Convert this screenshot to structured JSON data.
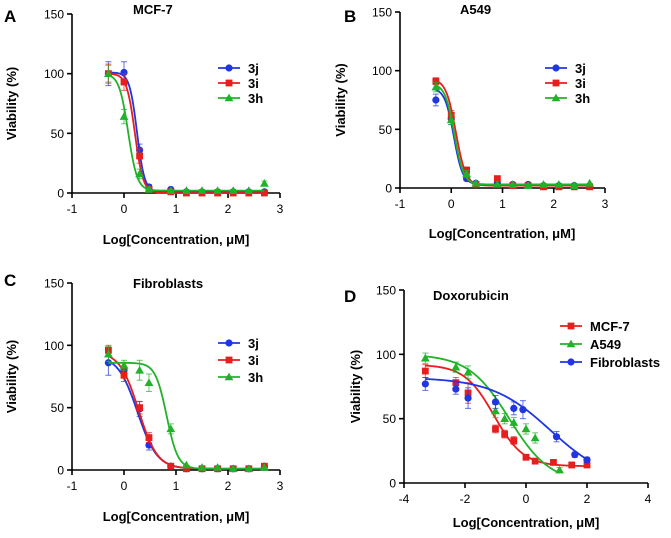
{
  "chart_data": [
    {
      "panel": "A",
      "type": "scatter",
      "title": "MCF-7",
      "xlabel": "Log[Concentration, μM]",
      "ylabel": "Viability (%)",
      "xlim": [
        -1,
        3
      ],
      "ylim": [
        0,
        150
      ],
      "xticks": [
        -1,
        0,
        1,
        2,
        3
      ],
      "yticks": [
        0,
        50,
        100,
        150
      ],
      "xtick_labels": [
        "-1",
        "0",
        "1",
        "2",
        "3"
      ],
      "ytick_labels": [
        "0",
        "50",
        "100",
        "150"
      ],
      "legend_position": "top-right",
      "series": [
        {
          "name": "3j",
          "color": "#1f36e0",
          "marker": "circle",
          "x": [
            -0.3,
            0.0,
            0.3,
            0.48,
            0.9,
            1.2,
            1.5,
            1.8,
            2.1,
            2.4,
            2.7
          ],
          "y": [
            100,
            101,
            36,
            5,
            3,
            1,
            1,
            1,
            1,
            1,
            1
          ],
          "err": [
            10,
            9,
            5,
            2,
            1,
            1,
            1,
            1,
            1,
            1,
            1
          ],
          "fit": {
            "top": 101,
            "bottom": 1,
            "log_ic50": 0.25,
            "hill": 6
          }
        },
        {
          "name": "3i",
          "color": "#e61e1e",
          "marker": "square",
          "x": [
            -0.3,
            0.0,
            0.3,
            0.48,
            0.9,
            1.2,
            1.5,
            1.8,
            2.1,
            2.4,
            2.7
          ],
          "y": [
            100,
            93,
            31,
            3,
            1,
            0,
            0,
            0,
            0,
            0,
            0
          ],
          "err": [
            8,
            7,
            6,
            2,
            1,
            1,
            1,
            1,
            1,
            1,
            1
          ],
          "fit": {
            "top": 100,
            "bottom": 0,
            "log_ic50": 0.21,
            "hill": 5.5
          }
        },
        {
          "name": "3h",
          "color": "#22b229",
          "marker": "triangle",
          "x": [
            -0.3,
            0.0,
            0.3,
            0.48,
            0.9,
            1.2,
            1.5,
            1.8,
            2.1,
            2.4,
            2.7
          ],
          "y": [
            100,
            64,
            16,
            3,
            2,
            2,
            2,
            2,
            2,
            2,
            8
          ],
          "err": [
            7,
            6,
            4,
            2,
            1,
            1,
            1,
            1,
            1,
            1,
            2
          ],
          "fit": {
            "top": 100,
            "bottom": 2,
            "log_ic50": 0.08,
            "hill": 5
          }
        }
      ]
    },
    {
      "panel": "B",
      "type": "scatter",
      "title": "A549",
      "xlabel": "Log[Concentration, μM]",
      "ylabel": "Viability (%)",
      "xlim": [
        -1,
        3
      ],
      "ylim": [
        0,
        150
      ],
      "xticks": [
        -1,
        0,
        1,
        2,
        3
      ],
      "yticks": [
        0,
        50,
        100,
        150
      ],
      "xtick_labels": [
        "-1",
        "0",
        "1",
        "2",
        "3"
      ],
      "ytick_labels": [
        "0",
        "50",
        "100",
        "150"
      ],
      "legend_position": "top-right",
      "series": [
        {
          "name": "3j",
          "color": "#1f36e0",
          "marker": "circle",
          "x": [
            -0.3,
            0.0,
            0.3,
            0.48,
            0.9,
            1.2,
            1.5,
            1.8,
            2.1,
            2.4,
            2.7
          ],
          "y": [
            75,
            59,
            8,
            4,
            4,
            3,
            3,
            2,
            2,
            2,
            2
          ],
          "err": [
            5,
            5,
            2,
            1,
            1,
            1,
            1,
            1,
            1,
            1,
            1
          ],
          "fit": {
            "top": 85,
            "bottom": 3,
            "log_ic50": 0.05,
            "hill": 5
          }
        },
        {
          "name": "3i",
          "color": "#e61e1e",
          "marker": "square",
          "x": [
            -0.3,
            0.0,
            0.3,
            0.48,
            0.9,
            1.2,
            1.5,
            1.8,
            2.1,
            2.4,
            2.7
          ],
          "y": [
            91,
            62,
            15,
            3,
            8,
            2,
            2,
            1,
            1,
            1,
            1
          ],
          "err": [
            3,
            4,
            3,
            1,
            1,
            1,
            1,
            1,
            1,
            1,
            1
          ],
          "fit": {
            "top": 93,
            "bottom": 2,
            "log_ic50": 0.09,
            "hill": 4.5
          }
        },
        {
          "name": "3h",
          "color": "#22b229",
          "marker": "triangle",
          "x": [
            -0.3,
            0.0,
            0.3,
            0.48,
            0.9,
            1.2,
            1.5,
            1.8,
            2.1,
            2.4,
            2.7
          ],
          "y": [
            86,
            58,
            12,
            4,
            3,
            3,
            2,
            3,
            3,
            2,
            4
          ],
          "err": [
            4,
            4,
            3,
            1,
            1,
            1,
            1,
            1,
            1,
            1,
            1
          ],
          "fit": {
            "top": 89,
            "bottom": 3,
            "log_ic50": 0.06,
            "hill": 4.8
          }
        }
      ]
    },
    {
      "panel": "C",
      "type": "scatter",
      "title": "Fibroblasts",
      "xlabel": "Log[Concentration, μM]",
      "ylabel": "Viability (%)",
      "xlim": [
        -1,
        3
      ],
      "ylim": [
        0,
        150
      ],
      "xticks": [
        -1,
        0,
        1,
        2,
        3
      ],
      "yticks": [
        0,
        50,
        100,
        150
      ],
      "xtick_labels": [
        "-1",
        "0",
        "1",
        "2",
        "3"
      ],
      "ytick_labels": [
        "0",
        "50",
        "100",
        "150"
      ],
      "legend_position": "top-right",
      "series": [
        {
          "name": "3j",
          "color": "#1f36e0",
          "marker": "circle",
          "x": [
            -0.3,
            0.0,
            0.3,
            0.48,
            0.9,
            1.2,
            1.5,
            1.8,
            2.1,
            2.4,
            2.7
          ],
          "y": [
            86,
            80,
            49,
            20,
            3,
            1,
            1,
            1,
            1,
            1,
            3
          ],
          "err": [
            10,
            6,
            6,
            4,
            1,
            1,
            1,
            1,
            1,
            1,
            1
          ],
          "fit": {
            "top": 92,
            "bottom": 1,
            "log_ic50": 0.26,
            "hill": 2.3
          }
        },
        {
          "name": "3i",
          "color": "#e61e1e",
          "marker": "square",
          "x": [
            -0.3,
            0.0,
            0.3,
            0.48,
            0.9,
            1.2,
            1.5,
            1.8,
            2.1,
            2.4,
            2.7
          ],
          "y": [
            96,
            76,
            50,
            26,
            3,
            1,
            1,
            1,
            1,
            1,
            3
          ],
          "err": [
            4,
            5,
            5,
            4,
            1,
            1,
            1,
            1,
            1,
            1,
            1
          ],
          "fit": {
            "top": 95,
            "bottom": 1,
            "log_ic50": 0.28,
            "hill": 2.4
          }
        },
        {
          "name": "3h",
          "color": "#22b229",
          "marker": "triangle",
          "x": [
            -0.3,
            0.0,
            0.3,
            0.48,
            0.9,
            1.2,
            1.5,
            1.8,
            2.1,
            2.4,
            2.7
          ],
          "y": [
            93,
            84,
            80,
            70,
            33,
            4,
            2,
            2,
            1,
            1,
            2
          ],
          "err": [
            6,
            4,
            8,
            7,
            4,
            1,
            1,
            1,
            1,
            1,
            1
          ],
          "fit": {
            "top": 86,
            "bottom": 1,
            "log_ic50": 0.82,
            "hill": 4
          }
        }
      ]
    },
    {
      "panel": "D",
      "type": "scatter",
      "title": "Doxorubicin",
      "xlabel": "Log[Concentration, μM]",
      "ylabel": "Viability (%)",
      "xlim": [
        -4,
        4
      ],
      "ylim": [
        0,
        150
      ],
      "xticks": [
        -4,
        -2,
        0,
        2,
        4
      ],
      "yticks": [
        0,
        50,
        100,
        150
      ],
      "xtick_labels": [
        "-4",
        "-2",
        "0",
        "2",
        "4"
      ],
      "ytick_labels": [
        "0",
        "50",
        "100",
        "150"
      ],
      "legend_position": "top-right",
      "series": [
        {
          "name": "MCF-7",
          "color": "#e61e1e",
          "marker": "square",
          "x": [
            -3.3,
            -2.3,
            -1.9,
            -1.0,
            -0.7,
            -0.4,
            0.0,
            0.3,
            0.9,
            1.5,
            2.0
          ],
          "y": [
            87,
            78,
            70,
            42,
            38,
            33,
            20,
            17,
            16,
            14,
            14
          ],
          "err": [
            5,
            4,
            8,
            3,
            3,
            3,
            2,
            2,
            2,
            2,
            2
          ],
          "fit": {
            "top": 92,
            "bottom": 13,
            "log_ic50": -1.05,
            "hill": 0.9
          }
        },
        {
          "name": "A549",
          "color": "#22b229",
          "marker": "triangle",
          "x": [
            -3.3,
            -2.3,
            -1.9,
            -1.0,
            -0.7,
            -0.4,
            0.0,
            0.3,
            1.1
          ],
          "y": [
            97,
            90,
            86,
            56,
            50,
            47,
            42,
            35,
            10
          ],
          "err": [
            4,
            4,
            5,
            5,
            4,
            4,
            4,
            4,
            2
          ],
          "fit": {
            "top": 100,
            "bottom": 0,
            "log_ic50": -0.55,
            "hill": 0.65
          }
        },
        {
          "name": "Fibroblasts",
          "color": "#1f36e0",
          "marker": "circle",
          "x": [
            -3.3,
            -2.3,
            -1.9,
            -1.0,
            -0.4,
            -0.1,
            1.0,
            1.6,
            2.0
          ],
          "y": [
            77,
            73,
            66,
            63,
            58,
            57,
            36,
            22,
            18
          ],
          "err": [
            5,
            4,
            8,
            5,
            5,
            7,
            4,
            2,
            2
          ],
          "fit": {
            "top": 82,
            "bottom": 0,
            "log_ic50": 0.8,
            "hill": 0.45
          }
        }
      ]
    }
  ]
}
